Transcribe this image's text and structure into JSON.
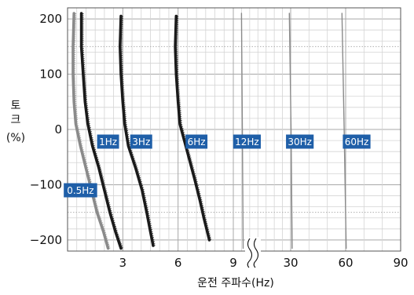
{
  "chart_data": {
    "type": "line",
    "title": "",
    "xlabel": "운전 주파수(Hz)",
    "ylabel_lines": [
      "토",
      "크",
      "(%)"
    ],
    "ylim": [
      -220,
      220
    ],
    "yticks": [
      {
        "value": 200,
        "label": "200"
      },
      {
        "value": 100,
        "label": "100"
      },
      {
        "value": 0,
        "label": "0"
      },
      {
        "value": -100,
        "label": "−100"
      },
      {
        "value": -200,
        "label": "−200"
      }
    ],
    "x_axis_note": "broken axis: linear 0–9 Hz, then 30/60/90 Hz",
    "xticks": [
      {
        "value": 3,
        "label": "3"
      },
      {
        "value": 6,
        "label": "6"
      },
      {
        "value": 9,
        "label": "9"
      },
      {
        "value": 30,
        "label": "30"
      },
      {
        "value": 60,
        "label": "60"
      },
      {
        "value": 90,
        "label": "90"
      }
    ],
    "grid": true,
    "line_color": "#1a1a1a",
    "label_box_color": "#1f5fa8",
    "series": [
      {
        "name": "0.5Hz",
        "color": "#8a8a8a",
        "points": [
          [
            0.35,
            210
          ],
          [
            0.3,
            150
          ],
          [
            0.3,
            100
          ],
          [
            0.35,
            50
          ],
          [
            0.45,
            10
          ],
          [
            0.7,
            -30
          ],
          [
            1.0,
            -70
          ],
          [
            1.3,
            -110
          ],
          [
            1.6,
            -150
          ],
          [
            1.95,
            -185
          ],
          [
            2.2,
            -215
          ]
        ],
        "label_at": [
          0.7,
          -110
        ]
      },
      {
        "name": "1Hz",
        "color": "#1a1a1a",
        "points": [
          [
            0.75,
            210
          ],
          [
            0.75,
            150
          ],
          [
            0.85,
            100
          ],
          [
            0.95,
            50
          ],
          [
            1.1,
            10
          ],
          [
            1.35,
            -30
          ],
          [
            1.7,
            -70
          ],
          [
            2.0,
            -110
          ],
          [
            2.3,
            -150
          ],
          [
            2.6,
            -185
          ],
          [
            2.9,
            -215
          ]
        ],
        "label_at": [
          2.2,
          -22
        ]
      },
      {
        "name": "3Hz",
        "color": "#1a1a1a",
        "points": [
          [
            2.9,
            205
          ],
          [
            2.85,
            150
          ],
          [
            2.9,
            100
          ],
          [
            3.0,
            50
          ],
          [
            3.1,
            10
          ],
          [
            3.3,
            -30
          ],
          [
            3.7,
            -70
          ],
          [
            4.05,
            -110
          ],
          [
            4.3,
            -150
          ],
          [
            4.5,
            -185
          ],
          [
            4.65,
            -210
          ]
        ],
        "label_at": [
          4.0,
          -22
        ]
      },
      {
        "name": "6Hz",
        "color": "#1a1a1a",
        "points": [
          [
            5.9,
            205
          ],
          [
            5.85,
            150
          ],
          [
            5.9,
            100
          ],
          [
            6.0,
            50
          ],
          [
            6.1,
            10
          ],
          [
            6.5,
            -40
          ],
          [
            6.9,
            -90
          ],
          [
            7.2,
            -130
          ],
          [
            7.4,
            -160
          ],
          [
            7.7,
            -200
          ]
        ],
        "label_at": [
          7.0,
          -22
        ]
      },
      {
        "name": "12Hz",
        "color": "#8a8a8a",
        "points": [
          [
            12,
            210
          ],
          [
            12.3,
            0
          ],
          [
            12.6,
            -215
          ]
        ],
        "label_at": [
          14,
          -22
        ]
      },
      {
        "name": "30Hz",
        "color": "#8a8a8a",
        "points": [
          [
            29.5,
            210
          ],
          [
            30.2,
            0
          ],
          [
            30.8,
            -215
          ]
        ],
        "label_at": [
          35,
          -22
        ]
      },
      {
        "name": "60Hz",
        "color": "#8a8a8a",
        "points": [
          [
            58,
            210
          ],
          [
            59.2,
            0
          ],
          [
            60.3,
            -215
          ]
        ],
        "label_at": [
          66,
          -22
        ]
      }
    ]
  }
}
